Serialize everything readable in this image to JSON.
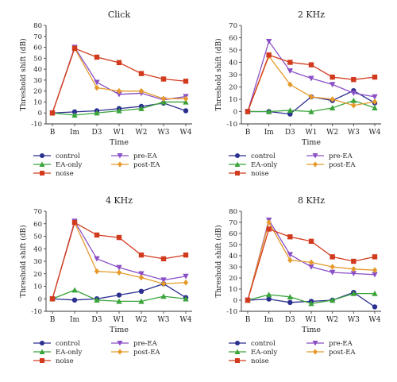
{
  "figure": {
    "x_axis_title": "Time",
    "y_axis_title": "Threshold shift (dB)",
    "series_styles": [
      {
        "name": "control",
        "color": "#2b2f8f",
        "marker": "circle"
      },
      {
        "name": "pre-EA",
        "color": "#8a4fc7",
        "marker": "triangle-down"
      },
      {
        "name": "EA-only",
        "color": "#3aa33a",
        "marker": "triangle-up"
      },
      {
        "name": "post-EA",
        "color": "#e59a2a",
        "marker": "diamond"
      },
      {
        "name": "noise",
        "color": "#d23a1e",
        "marker": "square"
      }
    ]
  },
  "chart_data": [
    {
      "type": "line",
      "title": "Click",
      "xlabel": "Time",
      "ylabel": "Threshold shift (dB)",
      "categories": [
        "B",
        "Im",
        "D3",
        "W1",
        "W2",
        "W3",
        "W4"
      ],
      "ylim": [
        -10,
        80
      ],
      "yticks": [
        -10,
        0,
        10,
        20,
        30,
        40,
        50,
        60,
        70,
        80
      ],
      "legend": "bottom",
      "series": [
        {
          "name": "control",
          "values": [
            0,
            1,
            2,
            4,
            6,
            9,
            2
          ]
        },
        {
          "name": "pre-EA",
          "values": [
            0,
            60,
            28,
            17,
            18,
            12,
            15
          ]
        },
        {
          "name": "EA-only",
          "values": [
            0,
            -2,
            0,
            2,
            4,
            10,
            10
          ]
        },
        {
          "name": "post-EA",
          "values": [
            0,
            59,
            23,
            20,
            20,
            13,
            13
          ]
        },
        {
          "name": "noise",
          "values": [
            0,
            59,
            51,
            46,
            36,
            31,
            29
          ]
        }
      ]
    },
    {
      "type": "line",
      "title": "2 KHz",
      "xlabel": "Time",
      "ylabel": "Threshold shift (dB)",
      "categories": [
        "B",
        "Im",
        "D3",
        "W1",
        "W2",
        "W3",
        "W4"
      ],
      "ylim": [
        -10,
        70
      ],
      "yticks": [
        -10,
        0,
        10,
        20,
        30,
        40,
        50,
        60,
        70
      ],
      "legend": "bottom",
      "series": [
        {
          "name": "control",
          "values": [
            0,
            0,
            -2,
            12,
            9,
            17,
            7
          ]
        },
        {
          "name": "pre-EA",
          "values": [
            0,
            57,
            33,
            27,
            22,
            15,
            12
          ]
        },
        {
          "name": "EA-only",
          "values": [
            0,
            0,
            1,
            0,
            3,
            9,
            3
          ]
        },
        {
          "name": "post-EA",
          "values": [
            0,
            45,
            22,
            12,
            10,
            5,
            8
          ]
        },
        {
          "name": "noise",
          "values": [
            0,
            46,
            40,
            38,
            28,
            26,
            28
          ]
        }
      ]
    },
    {
      "type": "line",
      "title": "4 KHz",
      "xlabel": "Time",
      "ylabel": "Threshold shift (dB)",
      "categories": [
        "B",
        "Im",
        "D3",
        "W1",
        "W2",
        "W3",
        "W4"
      ],
      "ylim": [
        -10,
        70
      ],
      "yticks": [
        -10,
        0,
        10,
        20,
        30,
        40,
        50,
        60,
        70
      ],
      "legend": "bottom",
      "series": [
        {
          "name": "control",
          "values": [
            0,
            -1,
            0,
            3,
            6,
            12,
            1
          ]
        },
        {
          "name": "pre-EA",
          "values": [
            0,
            62,
            32,
            25,
            20,
            15,
            18
          ]
        },
        {
          "name": "EA-only",
          "values": [
            0,
            7,
            -1,
            -2,
            -2,
            2,
            0
          ]
        },
        {
          "name": "post-EA",
          "values": [
            0,
            61,
            22,
            21,
            17,
            12,
            13
          ]
        },
        {
          "name": "noise",
          "values": [
            0,
            61,
            51,
            49,
            35,
            32,
            35
          ]
        }
      ]
    },
    {
      "type": "line",
      "title": "8 KHz",
      "xlabel": "Time",
      "ylabel": "Threshold shift (dB)",
      "categories": [
        "B",
        "Im",
        "D3",
        "W1",
        "W2",
        "W3",
        "W4"
      ],
      "ylim": [
        -10,
        80
      ],
      "yticks": [
        -10,
        0,
        10,
        20,
        30,
        40,
        50,
        60,
        70,
        80
      ],
      "legend": "bottom",
      "series": [
        {
          "name": "control",
          "values": [
            0,
            1,
            -2,
            -1,
            0,
            7,
            -6
          ]
        },
        {
          "name": "pre-EA",
          "values": [
            0,
            72,
            41,
            30,
            25,
            24,
            23
          ]
        },
        {
          "name": "EA-only",
          "values": [
            0,
            5,
            3,
            -3,
            0,
            6,
            6
          ]
        },
        {
          "name": "post-EA",
          "values": [
            0,
            70,
            36,
            34,
            30,
            28,
            27
          ]
        },
        {
          "name": "noise",
          "values": [
            0,
            64,
            57,
            53,
            39,
            35,
            39
          ]
        }
      ]
    }
  ]
}
